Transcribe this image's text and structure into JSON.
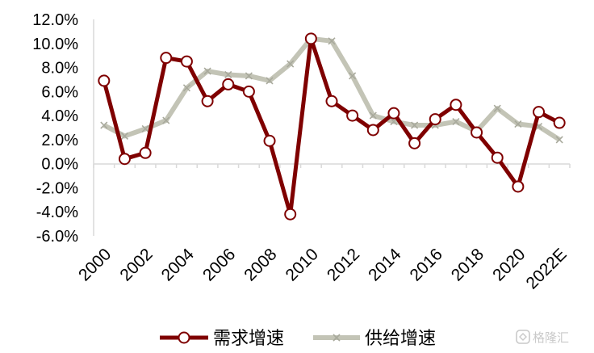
{
  "chart_data": {
    "type": "line",
    "title": "",
    "xlabel": "",
    "ylabel": "",
    "categories": [
      "2000",
      "2001",
      "2002",
      "2003",
      "2004",
      "2005",
      "2006",
      "2007",
      "2008",
      "2009",
      "2010",
      "2011",
      "2012",
      "2013",
      "2014",
      "2015",
      "2016",
      "2017",
      "2018",
      "2019",
      "2020",
      "2021",
      "2022E"
    ],
    "x_tick_labels": [
      "2000",
      "2002",
      "2004",
      "2006",
      "2008",
      "2010",
      "2012",
      "2014",
      "2016",
      "2018",
      "2020",
      "2022E"
    ],
    "y_tick_labels": [
      "12.0%",
      "10.0%",
      "8.0%",
      "6.0%",
      "4.0%",
      "2.0%",
      "0.0%",
      "-2.0%",
      "-4.0%",
      "-6.0%"
    ],
    "ylim": [
      -6,
      12
    ],
    "y_unit": "%",
    "grid": false,
    "legend_position": "bottom",
    "series": [
      {
        "name": "需求增速",
        "color": "#7f0000",
        "marker": "circle",
        "values": [
          6.9,
          0.4,
          0.9,
          8.8,
          8.5,
          5.2,
          6.6,
          6.0,
          1.9,
          -4.2,
          10.4,
          5.2,
          4.0,
          2.8,
          4.2,
          1.7,
          3.7,
          4.9,
          2.6,
          0.5,
          -1.9,
          4.3,
          3.4
        ]
      },
      {
        "name": "供给增速",
        "color": "#c3c4b6",
        "marker": "x",
        "values": [
          3.2,
          2.3,
          2.9,
          3.6,
          6.3,
          7.7,
          7.4,
          7.3,
          6.9,
          8.3,
          10.4,
          10.2,
          7.3,
          4.0,
          3.5,
          3.2,
          3.2,
          3.5,
          2.7,
          4.6,
          3.3,
          3.1,
          2.0
        ]
      }
    ]
  },
  "watermark": {
    "icon": "logo-icon",
    "text": "格隆汇"
  }
}
